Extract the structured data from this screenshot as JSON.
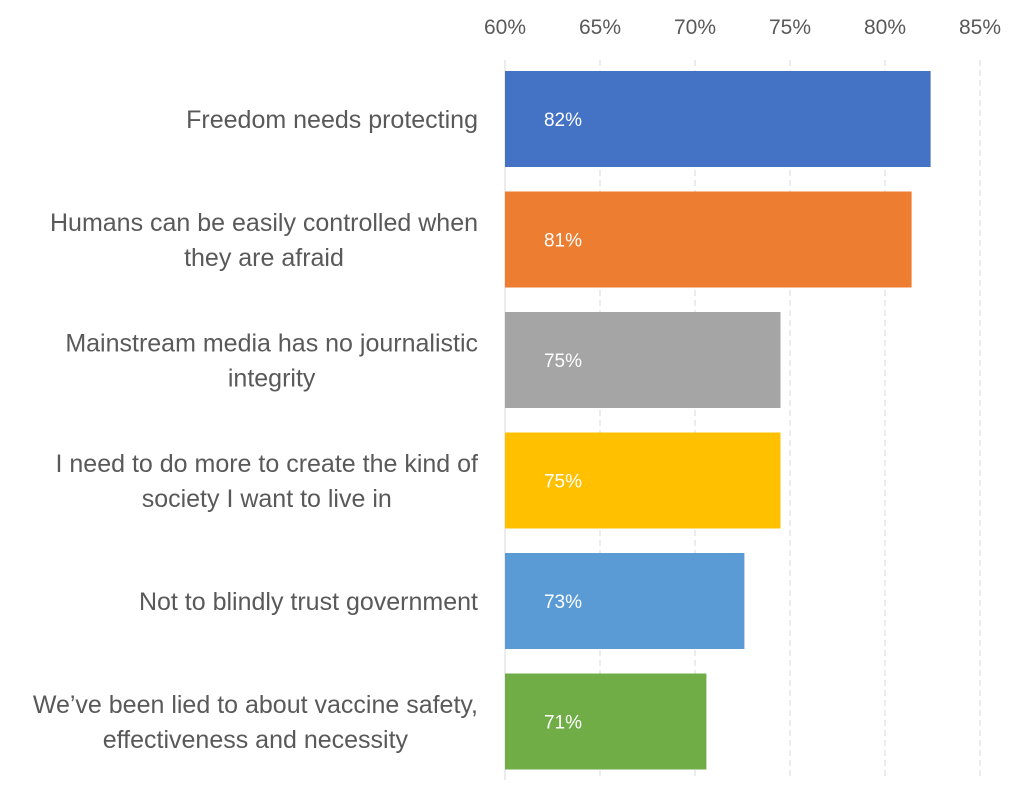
{
  "chart_data": {
    "type": "bar",
    "orientation": "horizontal",
    "categories": [
      [
        "Freedom needs protecting"
      ],
      [
        "Humans can be easily controlled when",
        "they are afraid"
      ],
      [
        "Mainstream media has no journalistic",
        "integrity"
      ],
      [
        "I need to do more to create the kind of",
        "society I want to live in"
      ],
      [
        "Not to blindly trust government"
      ],
      [
        "We’ve been lied to about vaccine safety,",
        "effectiveness and necessity"
      ]
    ],
    "values": [
      82.4,
      81.4,
      74.5,
      74.5,
      72.6,
      70.6
    ],
    "data_labels": [
      "82%",
      "81%",
      "75%",
      "75%",
      "73%",
      "71%"
    ],
    "colors": [
      "#4472C4",
      "#ED7D31",
      "#A5A5A5",
      "#FFC000",
      "#5B9BD5",
      "#70AD47"
    ],
    "xlim": [
      60,
      85
    ],
    "xticks": [
      60,
      65,
      70,
      75,
      80,
      85
    ],
    "xtick_labels": [
      "60%",
      "65%",
      "70%",
      "75%",
      "80%",
      "85%"
    ],
    "axis_position": "top",
    "grid": true,
    "title": "",
    "xlabel": "",
    "ylabel": ""
  }
}
